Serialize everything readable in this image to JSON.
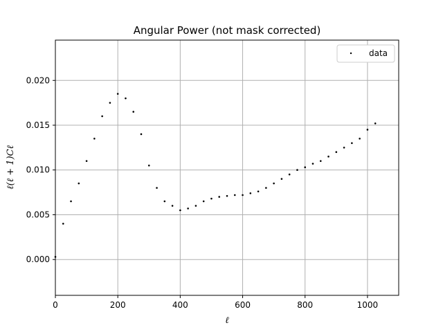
{
  "chart_data": {
    "type": "scatter",
    "title": "Angular Power (not mask corrected)",
    "xlabel": "ℓ",
    "ylabel": "ℓ(ℓ + 1)Cℓ",
    "xlim": [
      0,
      1100
    ],
    "ylim": [
      -0.004,
      0.0245
    ],
    "xticks": [
      0,
      200,
      400,
      600,
      800,
      1000
    ],
    "xtick_labels": [
      "0",
      "200",
      "400",
      "600",
      "800",
      "1000"
    ],
    "yticks": [
      0.0,
      0.005,
      0.01,
      0.015,
      0.02
    ],
    "ytick_labels": [
      "0.000",
      "0.005",
      "0.010",
      "0.015",
      "0.020"
    ],
    "grid": true,
    "legend_position": "top-right",
    "marker_color": "#000000",
    "series": [
      {
        "name": "data",
        "x": [
          0,
          25,
          50,
          75,
          100,
          125,
          150,
          175,
          200,
          225,
          250,
          275,
          300,
          325,
          350,
          375,
          400,
          425,
          450,
          475,
          500,
          525,
          550,
          575,
          600,
          625,
          650,
          675,
          700,
          725,
          750,
          775,
          800,
          825,
          850,
          875,
          900,
          925,
          950,
          975,
          1000,
          1025
        ],
        "y": [
          0.0003,
          0.004,
          0.0065,
          0.0085,
          0.011,
          0.0135,
          0.016,
          0.0175,
          0.0185,
          0.018,
          0.0165,
          0.014,
          0.0105,
          0.008,
          0.0065,
          0.006,
          0.0055,
          0.0057,
          0.006,
          0.0065,
          0.0068,
          0.007,
          0.0071,
          0.0072,
          0.0072,
          0.0074,
          0.0076,
          0.008,
          0.0085,
          0.009,
          0.0095,
          0.01,
          0.0103,
          0.0107,
          0.011,
          0.0115,
          0.012,
          0.0125,
          0.013,
          0.0135,
          0.0145,
          0.0152
        ]
      }
    ]
  }
}
